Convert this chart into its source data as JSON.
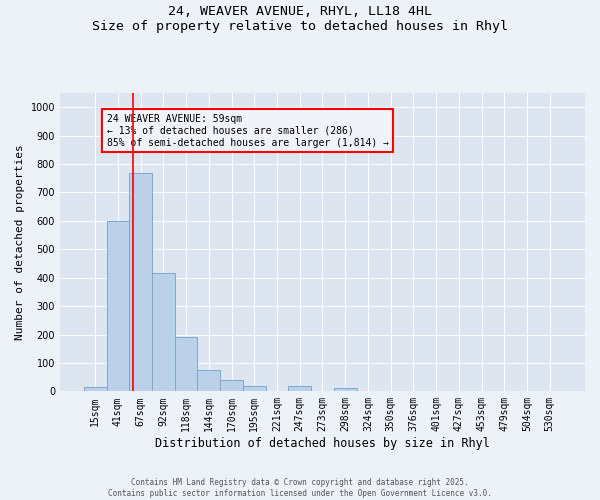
{
  "title_line1": "24, WEAVER AVENUE, RHYL, LL18 4HL",
  "title_line2": "Size of property relative to detached houses in Rhyl",
  "xlabel": "Distribution of detached houses by size in Rhyl",
  "ylabel": "Number of detached properties",
  "categories": [
    "15sqm",
    "41sqm",
    "67sqm",
    "92sqm",
    "118sqm",
    "144sqm",
    "170sqm",
    "195sqm",
    "221sqm",
    "247sqm",
    "273sqm",
    "298sqm",
    "324sqm",
    "350sqm",
    "376sqm",
    "401sqm",
    "427sqm",
    "453sqm",
    "479sqm",
    "504sqm",
    "530sqm"
  ],
  "values": [
    15,
    600,
    770,
    415,
    190,
    75,
    40,
    18,
    0,
    18,
    0,
    10,
    0,
    0,
    0,
    0,
    0,
    0,
    0,
    0,
    0
  ],
  "bar_color": "#bdd0e9",
  "bar_edge_color": "#7aaad0",
  "vline_x": 1.67,
  "vline_color": "red",
  "annotation_text": "24 WEAVER AVENUE: 59sqm\n← 13% of detached houses are smaller (286)\n85% of semi-detached houses are larger (1,814) →",
  "annotation_box_facecolor": "#f0f4fa",
  "annotation_box_edgecolor": "red",
  "ylim": [
    0,
    1050
  ],
  "yticks": [
    0,
    100,
    200,
    300,
    400,
    500,
    600,
    700,
    800,
    900,
    1000
  ],
  "footer_line1": "Contains HM Land Registry data © Crown copyright and database right 2025.",
  "footer_line2": "Contains public sector information licensed under the Open Government Licence v3.0.",
  "bg_color": "#edf1f8",
  "plot_bg_color": "#dce5f0",
  "grid_color": "#ffffff",
  "title_fontsize": 9.5,
  "xlabel_fontsize": 8.5,
  "ylabel_fontsize": 8,
  "tick_fontsize": 7,
  "annotation_fontsize": 7,
  "footer_fontsize": 5.5
}
